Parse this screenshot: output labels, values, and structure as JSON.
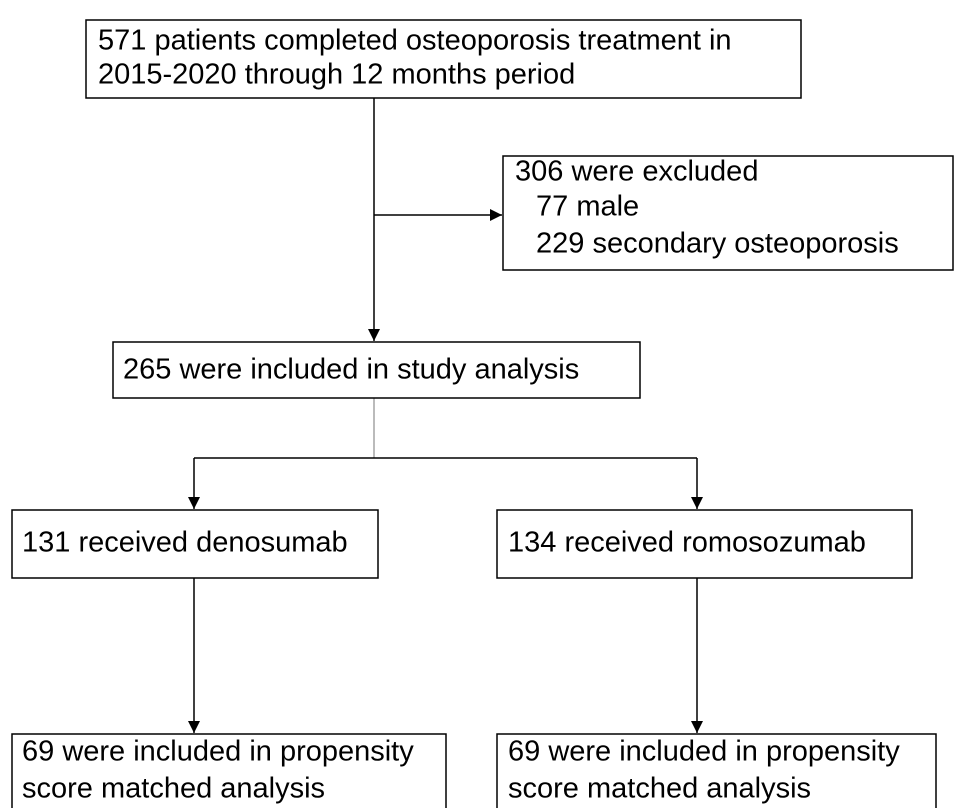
{
  "nodes": [
    {
      "lines": [
        "571 patients completed osteoporosis treatment in",
        "2015-2020 through 12 months period"
      ]
    },
    {
      "lines": [
        "306 were excluded",
        "77 male",
        "229 secondary osteoporosis"
      ]
    },
    {
      "lines": [
        "265 were included in study analysis"
      ]
    },
    {
      "lines": [
        "131 received denosumab"
      ]
    },
    {
      "lines": [
        "134 received romosozumab"
      ]
    },
    {
      "lines": [
        "69 were included in propensity",
        "score matched analysis"
      ]
    },
    {
      "lines": [
        "69 were included in propensity",
        "score matched analysis"
      ]
    }
  ]
}
